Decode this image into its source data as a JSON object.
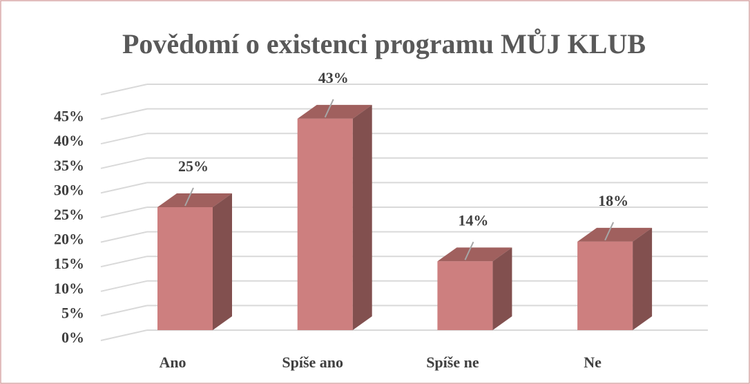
{
  "chart_data": {
    "type": "bar3d",
    "title": "Povědomí o existenci programu MŮJ KLUB",
    "categories": [
      "Ano",
      "Spíše ano",
      "Spíše ne",
      "Ne"
    ],
    "values": [
      25,
      43,
      14,
      18
    ],
    "value_labels": [
      "25%",
      "43%",
      "14%",
      "18%"
    ],
    "color": "#cd7f7f",
    "ylim": [
      0,
      50
    ],
    "yticks": [
      {
        "value": 0,
        "label": "0%"
      },
      {
        "value": 5,
        "label": "5%"
      },
      {
        "value": 10,
        "label": "10%"
      },
      {
        "value": 15,
        "label": "15%"
      },
      {
        "value": 20,
        "label": "20%"
      },
      {
        "value": 25,
        "label": "25%"
      },
      {
        "value": 30,
        "label": "30%"
      },
      {
        "value": 35,
        "label": "35%"
      },
      {
        "value": 40,
        "label": "40%"
      },
      {
        "value": 45,
        "label": "45%"
      }
    ],
    "grid": true
  }
}
